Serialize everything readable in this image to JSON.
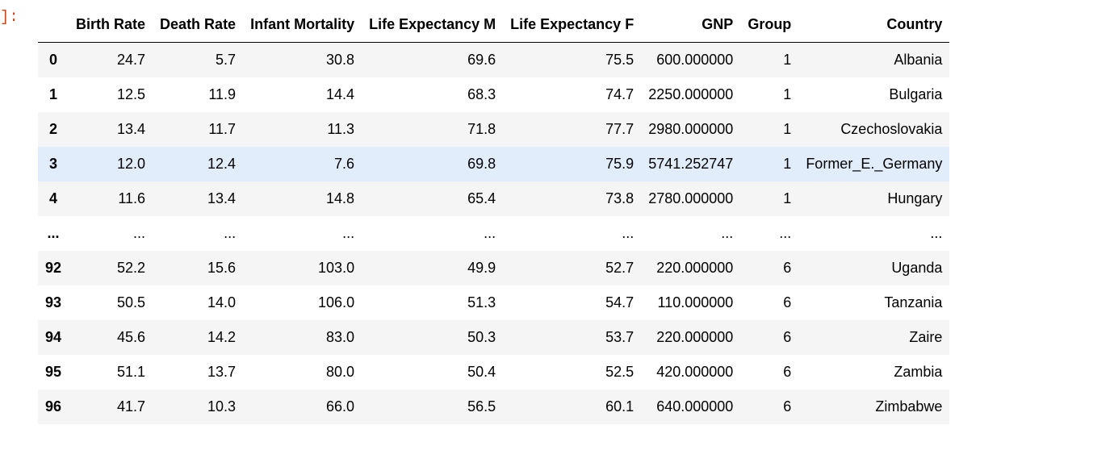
{
  "prompt": "]:",
  "table": {
    "columns": [
      "",
      "Birth Rate",
      "Death Rate",
      "Infant Mortality",
      "Life Expectancy M",
      "Life Expectancy F",
      "GNP",
      "Group",
      "Country"
    ],
    "rows": [
      {
        "index": "0",
        "values": [
          "24.7",
          "5.7",
          "30.8",
          "69.6",
          "75.5",
          "600.000000",
          "1",
          "Albania"
        ]
      },
      {
        "index": "1",
        "values": [
          "12.5",
          "11.9",
          "14.4",
          "68.3",
          "74.7",
          "2250.000000",
          "1",
          "Bulgaria"
        ]
      },
      {
        "index": "2",
        "values": [
          "13.4",
          "11.7",
          "11.3",
          "71.8",
          "77.7",
          "2980.000000",
          "1",
          "Czechoslovakia"
        ]
      },
      {
        "index": "3",
        "values": [
          "12.0",
          "12.4",
          "7.6",
          "69.8",
          "75.9",
          "5741.252747",
          "1",
          "Former_E._Germany"
        ]
      },
      {
        "index": "4",
        "values": [
          "11.6",
          "13.4",
          "14.8",
          "65.4",
          "73.8",
          "2780.000000",
          "1",
          "Hungary"
        ]
      },
      {
        "index": "...",
        "values": [
          "...",
          "...",
          "...",
          "...",
          "...",
          "...",
          "...",
          "..."
        ]
      },
      {
        "index": "92",
        "values": [
          "52.2",
          "15.6",
          "103.0",
          "49.9",
          "52.7",
          "220.000000",
          "6",
          "Uganda"
        ]
      },
      {
        "index": "93",
        "values": [
          "50.5",
          "14.0",
          "106.0",
          "51.3",
          "54.7",
          "110.000000",
          "6",
          "Tanzania"
        ]
      },
      {
        "index": "94",
        "values": [
          "45.6",
          "14.2",
          "83.0",
          "50.3",
          "53.7",
          "220.000000",
          "6",
          "Zaire"
        ]
      },
      {
        "index": "95",
        "values": [
          "51.1",
          "13.7",
          "80.0",
          "50.4",
          "52.5",
          "420.000000",
          "6",
          "Zambia"
        ]
      },
      {
        "index": "96",
        "values": [
          "41.7",
          "10.3",
          "66.0",
          "56.5",
          "60.1",
          "640.000000",
          "6",
          "Zimbabwe"
        ]
      }
    ],
    "highlighted_row": 3
  },
  "colors": {
    "prompt": "#d84315",
    "row_stripe": "#f5f5f5",
    "row_hover": "#e1edfb"
  }
}
